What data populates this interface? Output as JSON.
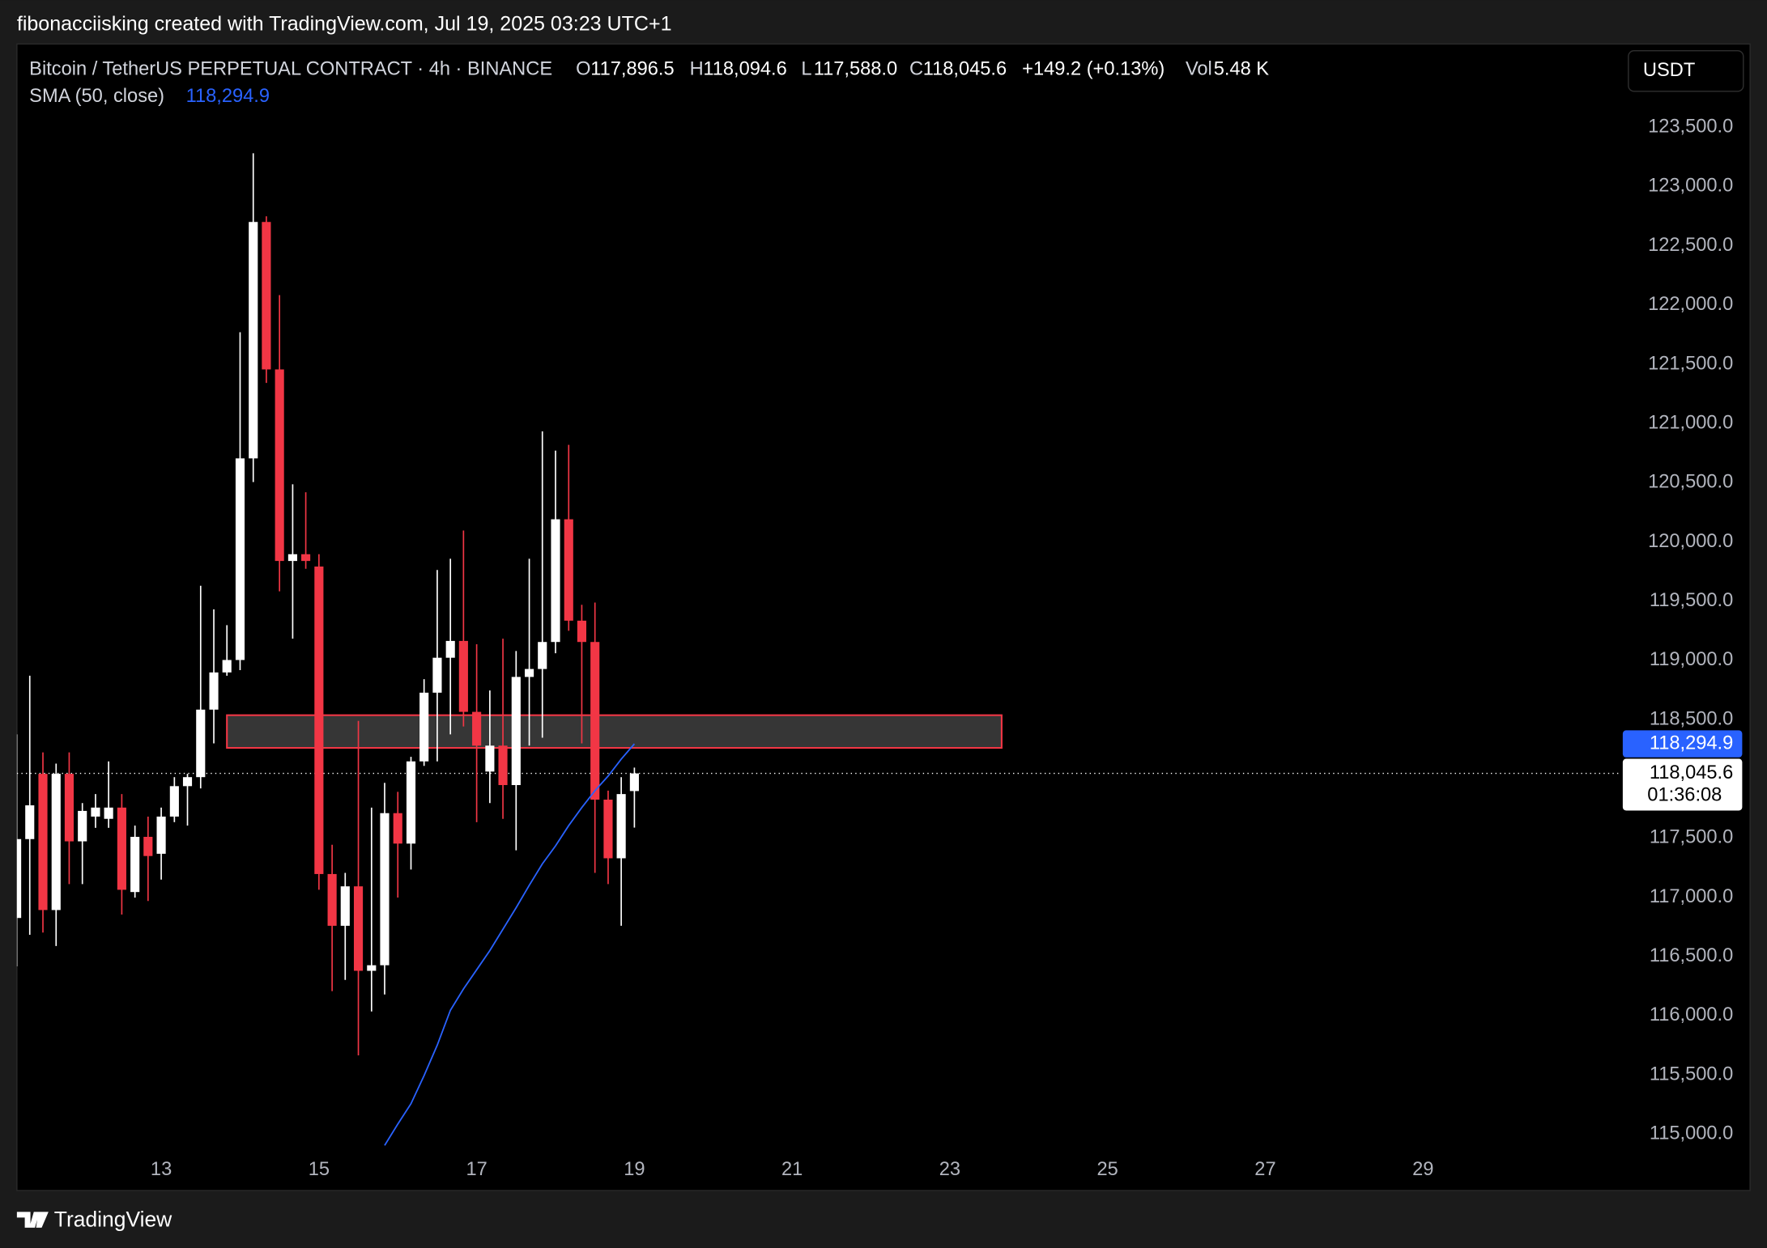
{
  "page": {
    "attribution": "fibonacciisking created with TradingView.com, Jul 19, 2025 03:23 UTC+1",
    "currency": "USDT",
    "footer_logo": "TradingView"
  },
  "chart_data": {
    "type": "candlestick",
    "title": "Bitcoin / TetherUS PERPETUAL CONTRACT · 4h · BINANCE",
    "ohlc_legend": [
      {
        "key": "O",
        "value": "117,896.5"
      },
      {
        "key": "H",
        "value": "118,094.6"
      },
      {
        "key": "L",
        "value": "117,588.0"
      },
      {
        "key": "C",
        "value": "118,045.6"
      }
    ],
    "change_label": "+149.2 (+0.13%)",
    "volume": {
      "key": "Vol",
      "value": "5.48 K"
    },
    "up_color": "#ffffff",
    "down_color": "#f23645",
    "x": [
      11.167,
      11.333,
      11.5,
      11.667,
      11.833,
      12,
      12.167,
      12.333,
      12.5,
      12.667,
      12.833,
      13,
      13.167,
      13.333,
      13.5,
      13.667,
      13.833,
      14,
      14.167,
      14.333,
      14.5,
      14.667,
      14.833,
      15,
      15.167,
      15.333,
      15.5,
      15.667,
      15.833,
      16,
      16.167,
      16.333,
      16.5,
      16.667,
      16.833,
      17,
      17.167,
      17.333,
      17.5,
      17.667,
      17.833,
      18,
      18.167,
      18.333,
      18.5,
      18.667,
      18.833,
      19
    ],
    "open": [
      116825,
      117491,
      118042,
      116892,
      118042,
      117472,
      117681,
      117662,
      117757,
      117044,
      117510,
      117367,
      117681,
      117938,
      118014,
      118584,
      118898,
      119003,
      120705,
      122701,
      121456,
      119839,
      119896,
      119792,
      117196,
      116759,
      117092,
      116379,
      116426,
      117710,
      117453,
      118147,
      118727,
      119022,
      119164,
      118565,
      118061,
      118280,
      117947,
      118860,
      118927,
      119155,
      120191,
      119335,
      119155,
      117824,
      117329,
      117896.5
    ],
    "high": [
      118375,
      118870,
      118223,
      118128,
      118223,
      117795,
      117871,
      118147,
      117871,
      117605,
      117681,
      117757,
      118014,
      118042,
      119630,
      119431,
      119297,
      121770,
      123281,
      122749,
      122083,
      120486,
      120419,
      119896,
      117443,
      117206,
      118489,
      117757,
      117966,
      117890,
      118185,
      118841,
      119763,
      119858,
      120096,
      119136,
      118746,
      119183,
      119079,
      119858,
      120933,
      120771,
      120819,
      119469,
      119488,
      117900,
      118014,
      118094.6
    ],
    "low": [
      116417,
      116683,
      116702,
      116588,
      117111,
      117111,
      117586,
      117586,
      116854,
      116997,
      116968,
      117149,
      117634,
      117605,
      117919,
      118299,
      118870,
      118917,
      120505,
      121342,
      119583,
      119183,
      119773,
      117063,
      116207,
      116302,
      115665,
      116036,
      116179,
      116997,
      117234,
      118109,
      118147,
      118375,
      118442,
      117634,
      117795,
      117662,
      117396,
      118280,
      118347,
      119060,
      119250,
      118299,
      117206,
      117111,
      116759,
      117588.0
    ],
    "close": [
      117491,
      117776,
      116892,
      118042,
      117472,
      117729,
      117757,
      117757,
      117063,
      117510,
      117348,
      117681,
      117938,
      118014,
      118584,
      118898,
      119003,
      120705,
      122701,
      121456,
      119839,
      119896,
      119839,
      117196,
      116759,
      117092,
      116379,
      116426,
      117710,
      117453,
      118147,
      118727,
      119022,
      119164,
      118565,
      118280,
      118280,
      117947,
      118860,
      118927,
      119155,
      120191,
      119335,
      119155,
      117824,
      117329,
      117871,
      118045.6
    ],
    "sma": {
      "name": "SMA (50, close)",
      "color": "#2962ff",
      "value_label": "118,294.9",
      "values": [
        null,
        null,
        null,
        null,
        null,
        null,
        null,
        null,
        null,
        null,
        null,
        null,
        null,
        null,
        null,
        null,
        null,
        null,
        null,
        null,
        null,
        null,
        null,
        null,
        null,
        null,
        null,
        null,
        114905,
        115085,
        115257,
        115494,
        115751,
        116046,
        116226,
        116388,
        116550,
        116730,
        116911,
        117101,
        117282,
        117434,
        117605,
        117757,
        117900,
        118023,
        118166,
        118294.9
      ]
    },
    "last_price_label": "118,045.6",
    "countdown": "01:36:08",
    "zone": {
      "x": [
        13.833,
        23.657
      ],
      "y": [
        118261,
        118537
      ],
      "fill": "#363636",
      "stroke": "#f23645"
    },
    "xlim": [
      11.17,
      31.49
    ],
    "xticks": [
      13,
      15,
      17,
      19,
      21,
      23,
      25,
      27,
      29
    ],
    "ylim": [
      114857,
      124194
    ],
    "yticks": [
      {
        "value": 115000,
        "label": "115,000.0"
      },
      {
        "value": 115500,
        "label": "115,500.0"
      },
      {
        "value": 116000,
        "label": "116,000.0"
      },
      {
        "value": 116500,
        "label": "116,500.0"
      },
      {
        "value": 117000,
        "label": "117,000.0"
      },
      {
        "value": 117500,
        "label": "117,500.0"
      },
      {
        "value": 118000,
        "label": "118,000.0"
      },
      {
        "value": 118500,
        "label": "118,500.0"
      },
      {
        "value": 119000,
        "label": "119,000.0"
      },
      {
        "value": 119500,
        "label": "119,500.0"
      },
      {
        "value": 120000,
        "label": "120,000.0"
      },
      {
        "value": 120500,
        "label": "120,500.0"
      },
      {
        "value": 121000,
        "label": "121,000.0"
      },
      {
        "value": 121500,
        "label": "121,500.0"
      },
      {
        "value": 122000,
        "label": "122,000.0"
      },
      {
        "value": 122500,
        "label": "122,500.0"
      },
      {
        "value": 123000,
        "label": "123,000.0"
      },
      {
        "value": 123500,
        "label": "123,500.0"
      }
    ]
  }
}
